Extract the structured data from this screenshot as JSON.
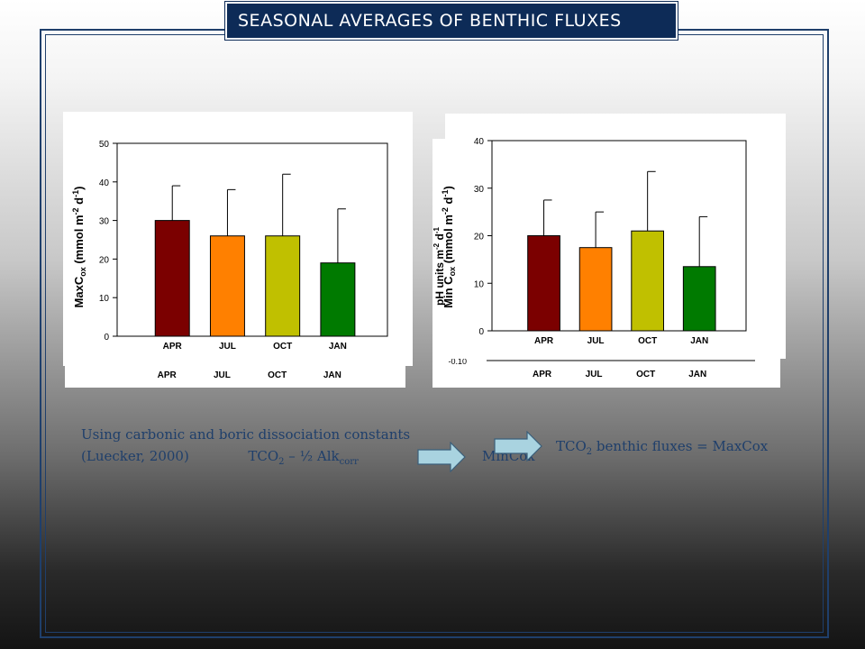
{
  "slide": {
    "title": "SEASONAL AVERAGES OF BENTHIC FLUXES",
    "note_line1": "Using carbonic and boric dissociation constants",
    "note_line2_a": "(Luecker, 2000)",
    "note_line2_b": "TCO",
    "note_line2_b_sub": "2",
    "note_line2_c": " – ½ Alk",
    "note_line2_c_sub": "corr",
    "mincox_label": "MinCox",
    "tco2_text": "TCO",
    "tco2_sub": "2",
    "tco2_rest": " benthic fluxes = MaxCox"
  },
  "colors": {
    "title_bg": "#0d2b57",
    "frame": "#1f3f6b",
    "text_blue": "#1f3f6b",
    "bar_apr": "#7b0000",
    "bar_jul": "#ff8000",
    "bar_oct": "#c0c000",
    "bar_jan": "#007a00",
    "arrow_fill": "#a9d3e0"
  },
  "chart_data": [
    {
      "type": "bar",
      "categories": [
        "APR",
        "JUL",
        "OCT",
        "JAN"
      ],
      "values": [
        30,
        26,
        26,
        19
      ],
      "error_upper": [
        39,
        38,
        42,
        33
      ],
      "ylabel_main": "MaxC",
      "ylabel_sub": "ox",
      "ylabel_unit": " (mmol m",
      "ylabel_sup1": "-2",
      "ylabel_d": " d",
      "ylabel_sup2": "-1",
      "ylabel_close": ")",
      "ylim": [
        0,
        50
      ],
      "yticks": [
        0,
        10,
        20,
        30,
        40,
        50
      ],
      "under_labels": [
        "APR",
        "JUL",
        "OCT",
        "JAN"
      ]
    },
    {
      "type": "bar",
      "categories": [
        "APR",
        "JUL",
        "OCT",
        "JAN"
      ],
      "values": [
        20,
        17.5,
        21,
        13.5
      ],
      "error_upper": [
        27.5,
        25,
        33.5,
        24
      ],
      "ylabel_main": "Min C",
      "ylabel_sub": "ox",
      "ylabel_unit": " (mmol m",
      "ylabel_sup1": "-2",
      "ylabel_d": " d",
      "ylabel_sup2": "-1",
      "ylabel_close": ")",
      "ylim": [
        0,
        40
      ],
      "yticks": [
        0,
        10,
        20,
        30,
        40
      ],
      "under_labels": [
        "APR",
        "JUL",
        "OCT",
        "JAN"
      ],
      "under_ylabel": "pH units m",
      "under_ylabel_sup1": "-2",
      "under_ylabel_d": " d",
      "under_ylabel_sup2": "-1",
      "under_tick": "-0.10"
    }
  ]
}
